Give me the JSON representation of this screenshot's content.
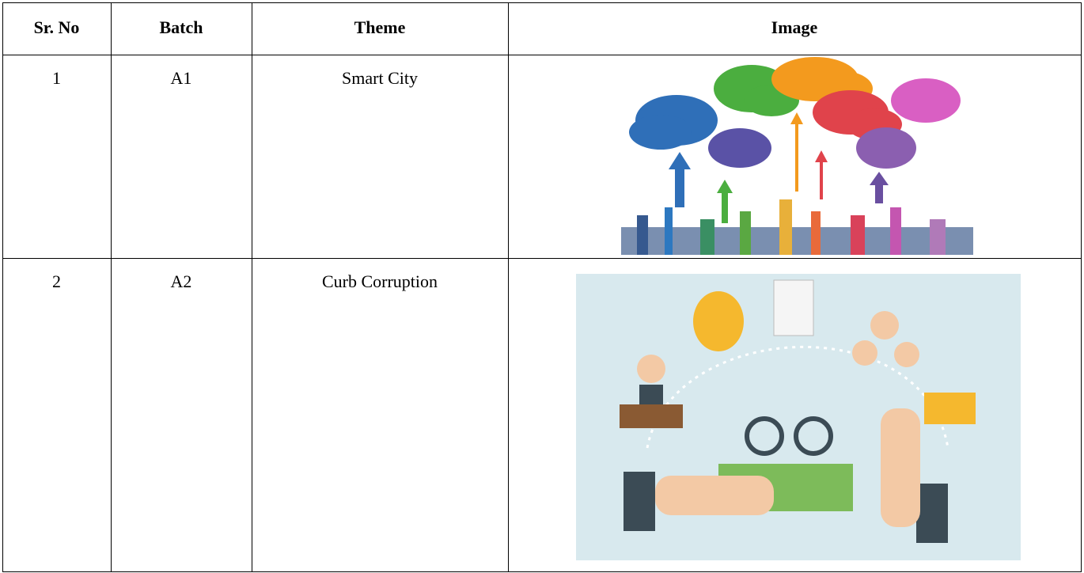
{
  "table": {
    "header": [
      "Sr. No",
      "Batch",
      "Theme",
      "Image"
    ],
    "rows": [
      [
        "1",
        "A1",
        "Smart City"
      ],
      [
        "2",
        "A2",
        "Curb Corruption"
      ]
    ]
  }
}
